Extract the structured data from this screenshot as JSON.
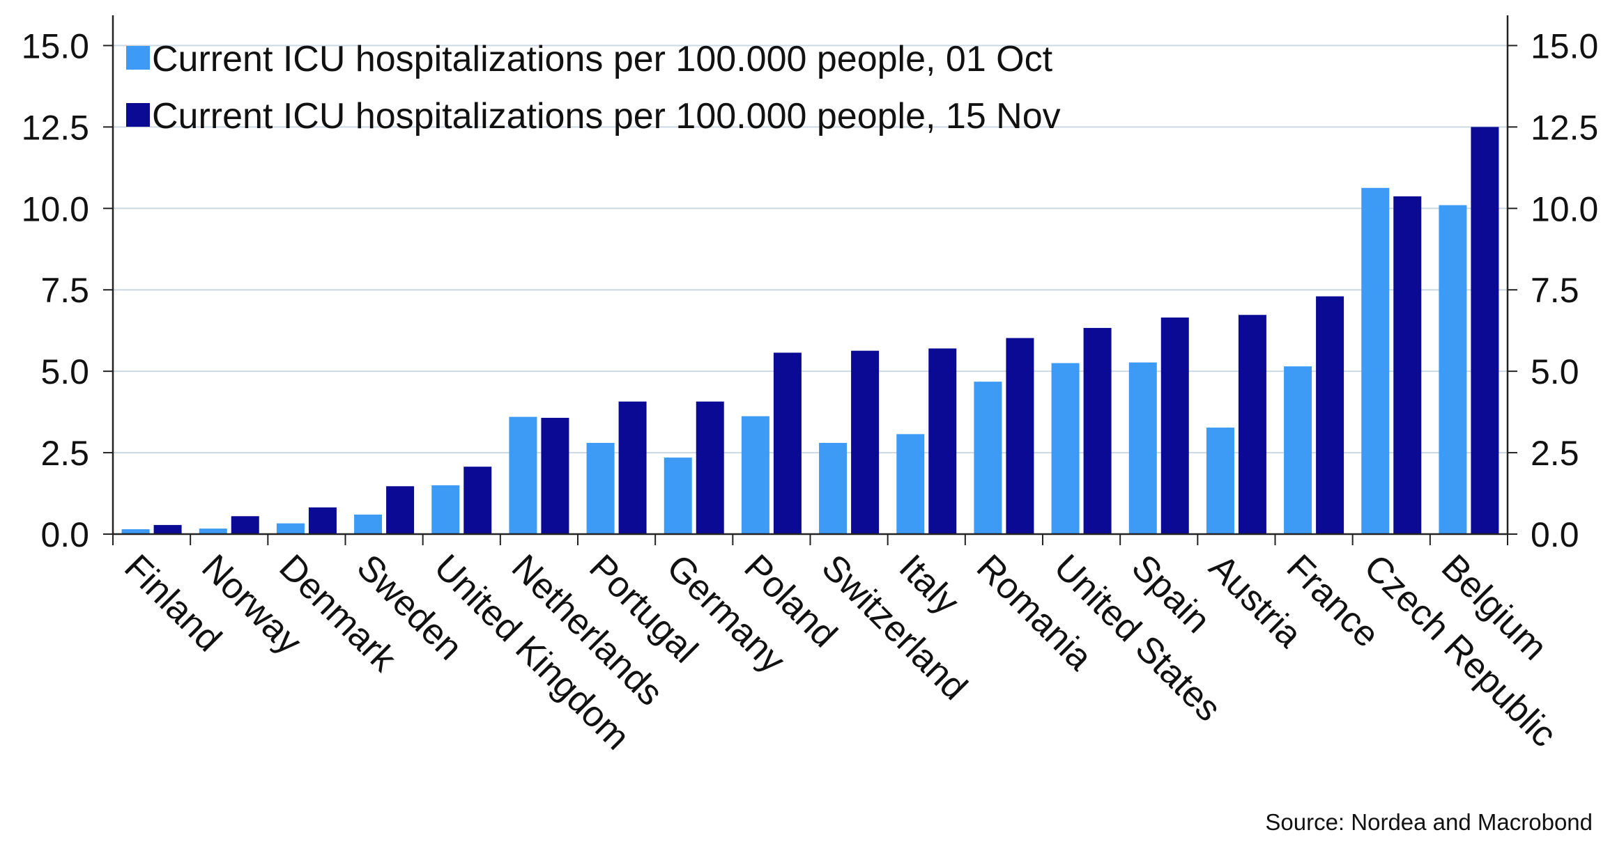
{
  "chart_data": {
    "type": "bar",
    "categories": [
      "Finland",
      "Norway",
      "Denmark",
      "Sweden",
      "United Kingdom",
      "Netherlands",
      "Portugal",
      "Germany",
      "Poland",
      "Switzerland",
      "Italy",
      "Romania",
      "United States",
      "Spain",
      "Austria",
      "France",
      "Czech Republic",
      "Belgium"
    ],
    "series": [
      {
        "name": "Current ICU hospitalizations per 100.000 people, 01 Oct",
        "color": "#3d9bf6",
        "values": [
          0.15,
          0.17,
          0.33,
          0.6,
          1.5,
          3.6,
          2.8,
          2.35,
          3.62,
          2.8,
          3.07,
          4.68,
          5.25,
          5.27,
          3.27,
          5.15,
          10.63,
          10.1
        ]
      },
      {
        "name": "Current ICU hospitalizations per 100.000 people, 15 Nov",
        "color": "#0a0a94",
        "values": [
          0.28,
          0.55,
          0.82,
          1.47,
          2.07,
          3.57,
          4.07,
          4.07,
          5.57,
          5.63,
          5.7,
          6.02,
          6.33,
          6.65,
          6.73,
          7.3,
          10.37,
          12.5
        ]
      }
    ],
    "yticks": [
      "0.0",
      "2.5",
      "5.0",
      "7.5",
      "10.0",
      "12.5",
      "15.0"
    ],
    "ylim": [
      0,
      15.8
    ],
    "grid": true,
    "legend_position": "top-left",
    "source": "Source: Nordea and Macrobond"
  }
}
